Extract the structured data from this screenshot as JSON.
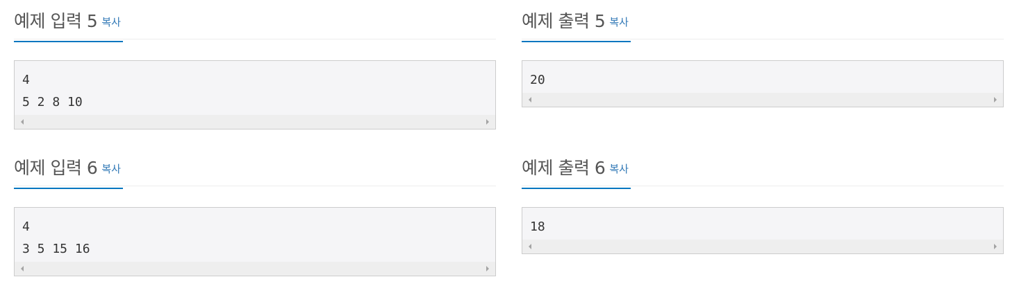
{
  "copy_label": "복사",
  "samples": [
    {
      "title": "예제 입력 5",
      "content": "4\n5 2 8 10"
    },
    {
      "title": "예제 출력 5",
      "content": "20"
    },
    {
      "title": "예제 입력 6",
      "content": "4\n3 5 15 16"
    },
    {
      "title": "예제 출력 6",
      "content": "18"
    }
  ],
  "colors": {
    "accent_underline": "#0076c0",
    "copy_link": "#337ab7",
    "sample_bg": "#f5f5f7",
    "scrollbar_bg": "#eeeeee"
  },
  "icons": [
    "scroll-left-arrow-icon",
    "scroll-right-arrow-icon"
  ]
}
